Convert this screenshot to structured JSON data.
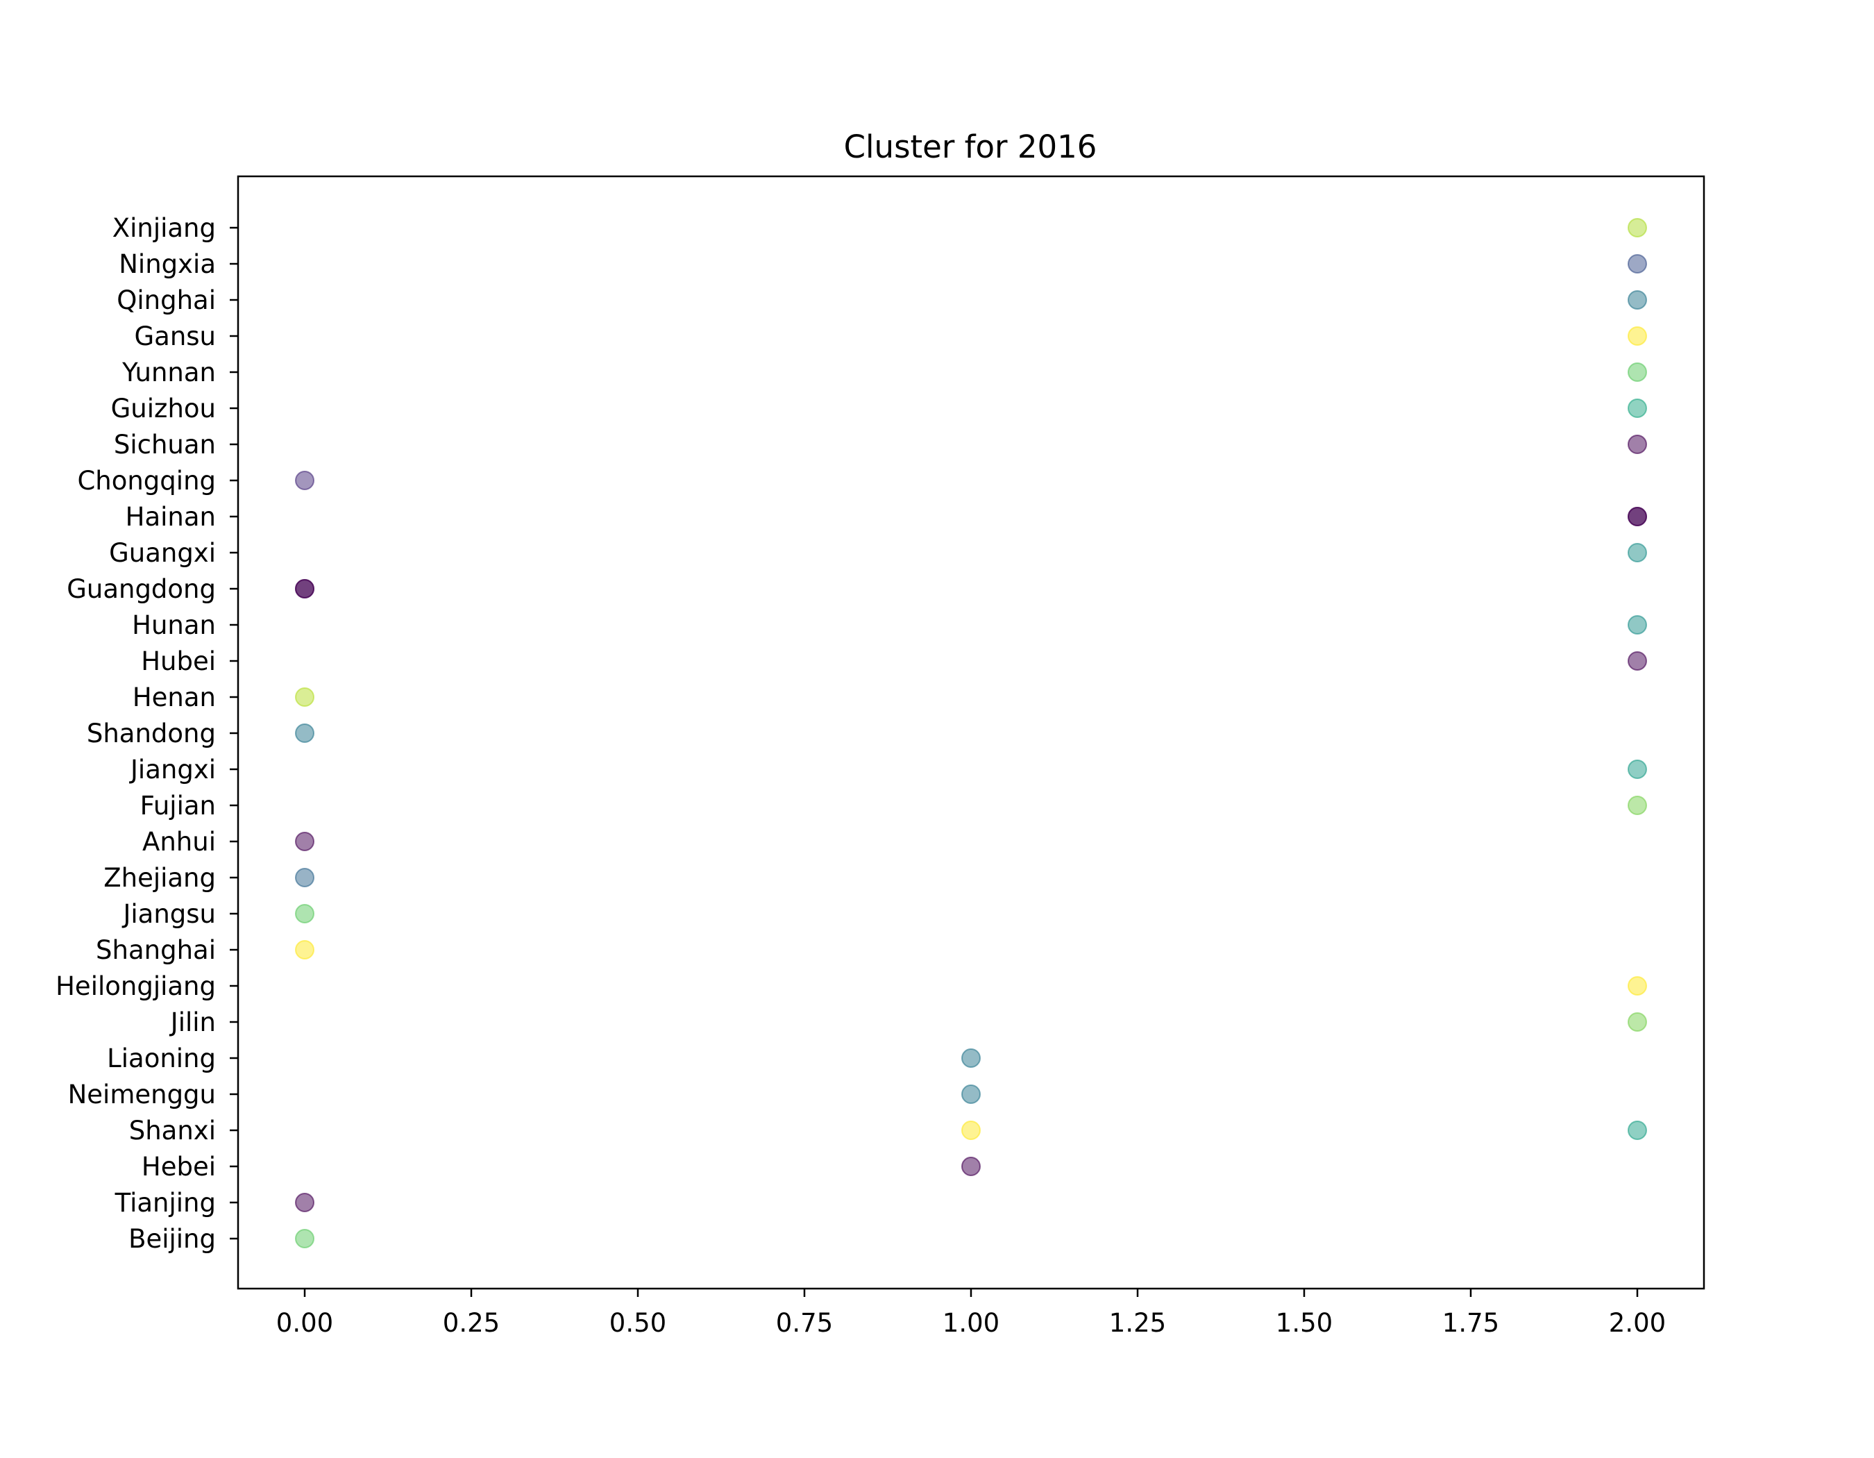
{
  "chart_data": {
    "type": "scatter",
    "title": "Cluster for 2016",
    "xlabel": "",
    "ylabel": "",
    "xlim": [
      -0.1,
      2.1
    ],
    "xticks": [
      0.0,
      0.25,
      0.5,
      0.75,
      1.0,
      1.25,
      1.5,
      1.75,
      2.0
    ],
    "xtick_labels": [
      "0.00",
      "0.25",
      "0.50",
      "0.75",
      "1.00",
      "1.25",
      "1.50",
      "1.75",
      "2.00"
    ],
    "categories": [
      "Beijing",
      "Tianjing",
      "Hebei",
      "Shanxi",
      "Neimenggu",
      "Liaoning",
      "Jilin",
      "Heilongjiang",
      "Shanghai",
      "Jiangsu",
      "Zhejiang",
      "Anhui",
      "Fujian",
      "Jiangxi",
      "Shandong",
      "Henan",
      "Hubei",
      "Hunan",
      "Guangdong",
      "Guangxi",
      "Hainan",
      "Chongqing",
      "Sichuan",
      "Guizhou",
      "Yunnan",
      "Gansu",
      "Qinghai",
      "Ningxia",
      "Xinjiang"
    ],
    "grid": false,
    "marker_alpha": 0.5,
    "points": [
      {
        "x": 0,
        "y": "Beijing",
        "color": "#5ec962"
      },
      {
        "x": 0,
        "y": "Tianjing",
        "color": "#440154"
      },
      {
        "x": 1,
        "y": "Hebei",
        "color": "#440154"
      },
      {
        "x": 1,
        "y": "Shanxi",
        "color": "#fde725"
      },
      {
        "x": 2,
        "y": "Shanxi",
        "color": "#1fa187"
      },
      {
        "x": 1,
        "y": "Neimenggu",
        "color": "#2a788e"
      },
      {
        "x": 1,
        "y": "Liaoning",
        "color": "#2a788e"
      },
      {
        "x": 2,
        "y": "Jilin",
        "color": "#7ad151"
      },
      {
        "x": 2,
        "y": "Heilongjiang",
        "color": "#fde725"
      },
      {
        "x": 0,
        "y": "Shanghai",
        "color": "#fde725"
      },
      {
        "x": 0,
        "y": "Jiangsu",
        "color": "#5ec962"
      },
      {
        "x": 0,
        "y": "Zhejiang",
        "color": "#31688e"
      },
      {
        "x": 0,
        "y": "Anhui",
        "color": "#440154"
      },
      {
        "x": 2,
        "y": "Fujian",
        "color": "#7ad151"
      },
      {
        "x": 2,
        "y": "Jiangxi",
        "color": "#1f9e89"
      },
      {
        "x": 0,
        "y": "Shandong",
        "color": "#2a788e"
      },
      {
        "x": 0,
        "y": "Henan",
        "color": "#b5de2b"
      },
      {
        "x": 2,
        "y": "Hubei",
        "color": "#440154"
      },
      {
        "x": 2,
        "y": "Hunan",
        "color": "#21918c"
      },
      {
        "x": 0,
        "y": "Guangdong",
        "color": "#440154"
      },
      {
        "x": 0,
        "y": "Guangdong",
        "color": "#440154"
      },
      {
        "x": 2,
        "y": "Guangxi",
        "color": "#21918c"
      },
      {
        "x": 2,
        "y": "Hainan",
        "color": "#440154"
      },
      {
        "x": 2,
        "y": "Hainan",
        "color": "#440154"
      },
      {
        "x": 0,
        "y": "Chongqing",
        "color": "#472d7b"
      },
      {
        "x": 2,
        "y": "Sichuan",
        "color": "#440154"
      },
      {
        "x": 2,
        "y": "Guizhou",
        "color": "#22a884"
      },
      {
        "x": 2,
        "y": "Yunnan",
        "color": "#5ec962"
      },
      {
        "x": 2,
        "y": "Gansu",
        "color": "#fde725"
      },
      {
        "x": 2,
        "y": "Qinghai",
        "color": "#2a788e"
      },
      {
        "x": 2,
        "y": "Ningxia",
        "color": "#3b528b"
      },
      {
        "x": 2,
        "y": "Xinjiang",
        "color": "#addc30"
      }
    ]
  }
}
